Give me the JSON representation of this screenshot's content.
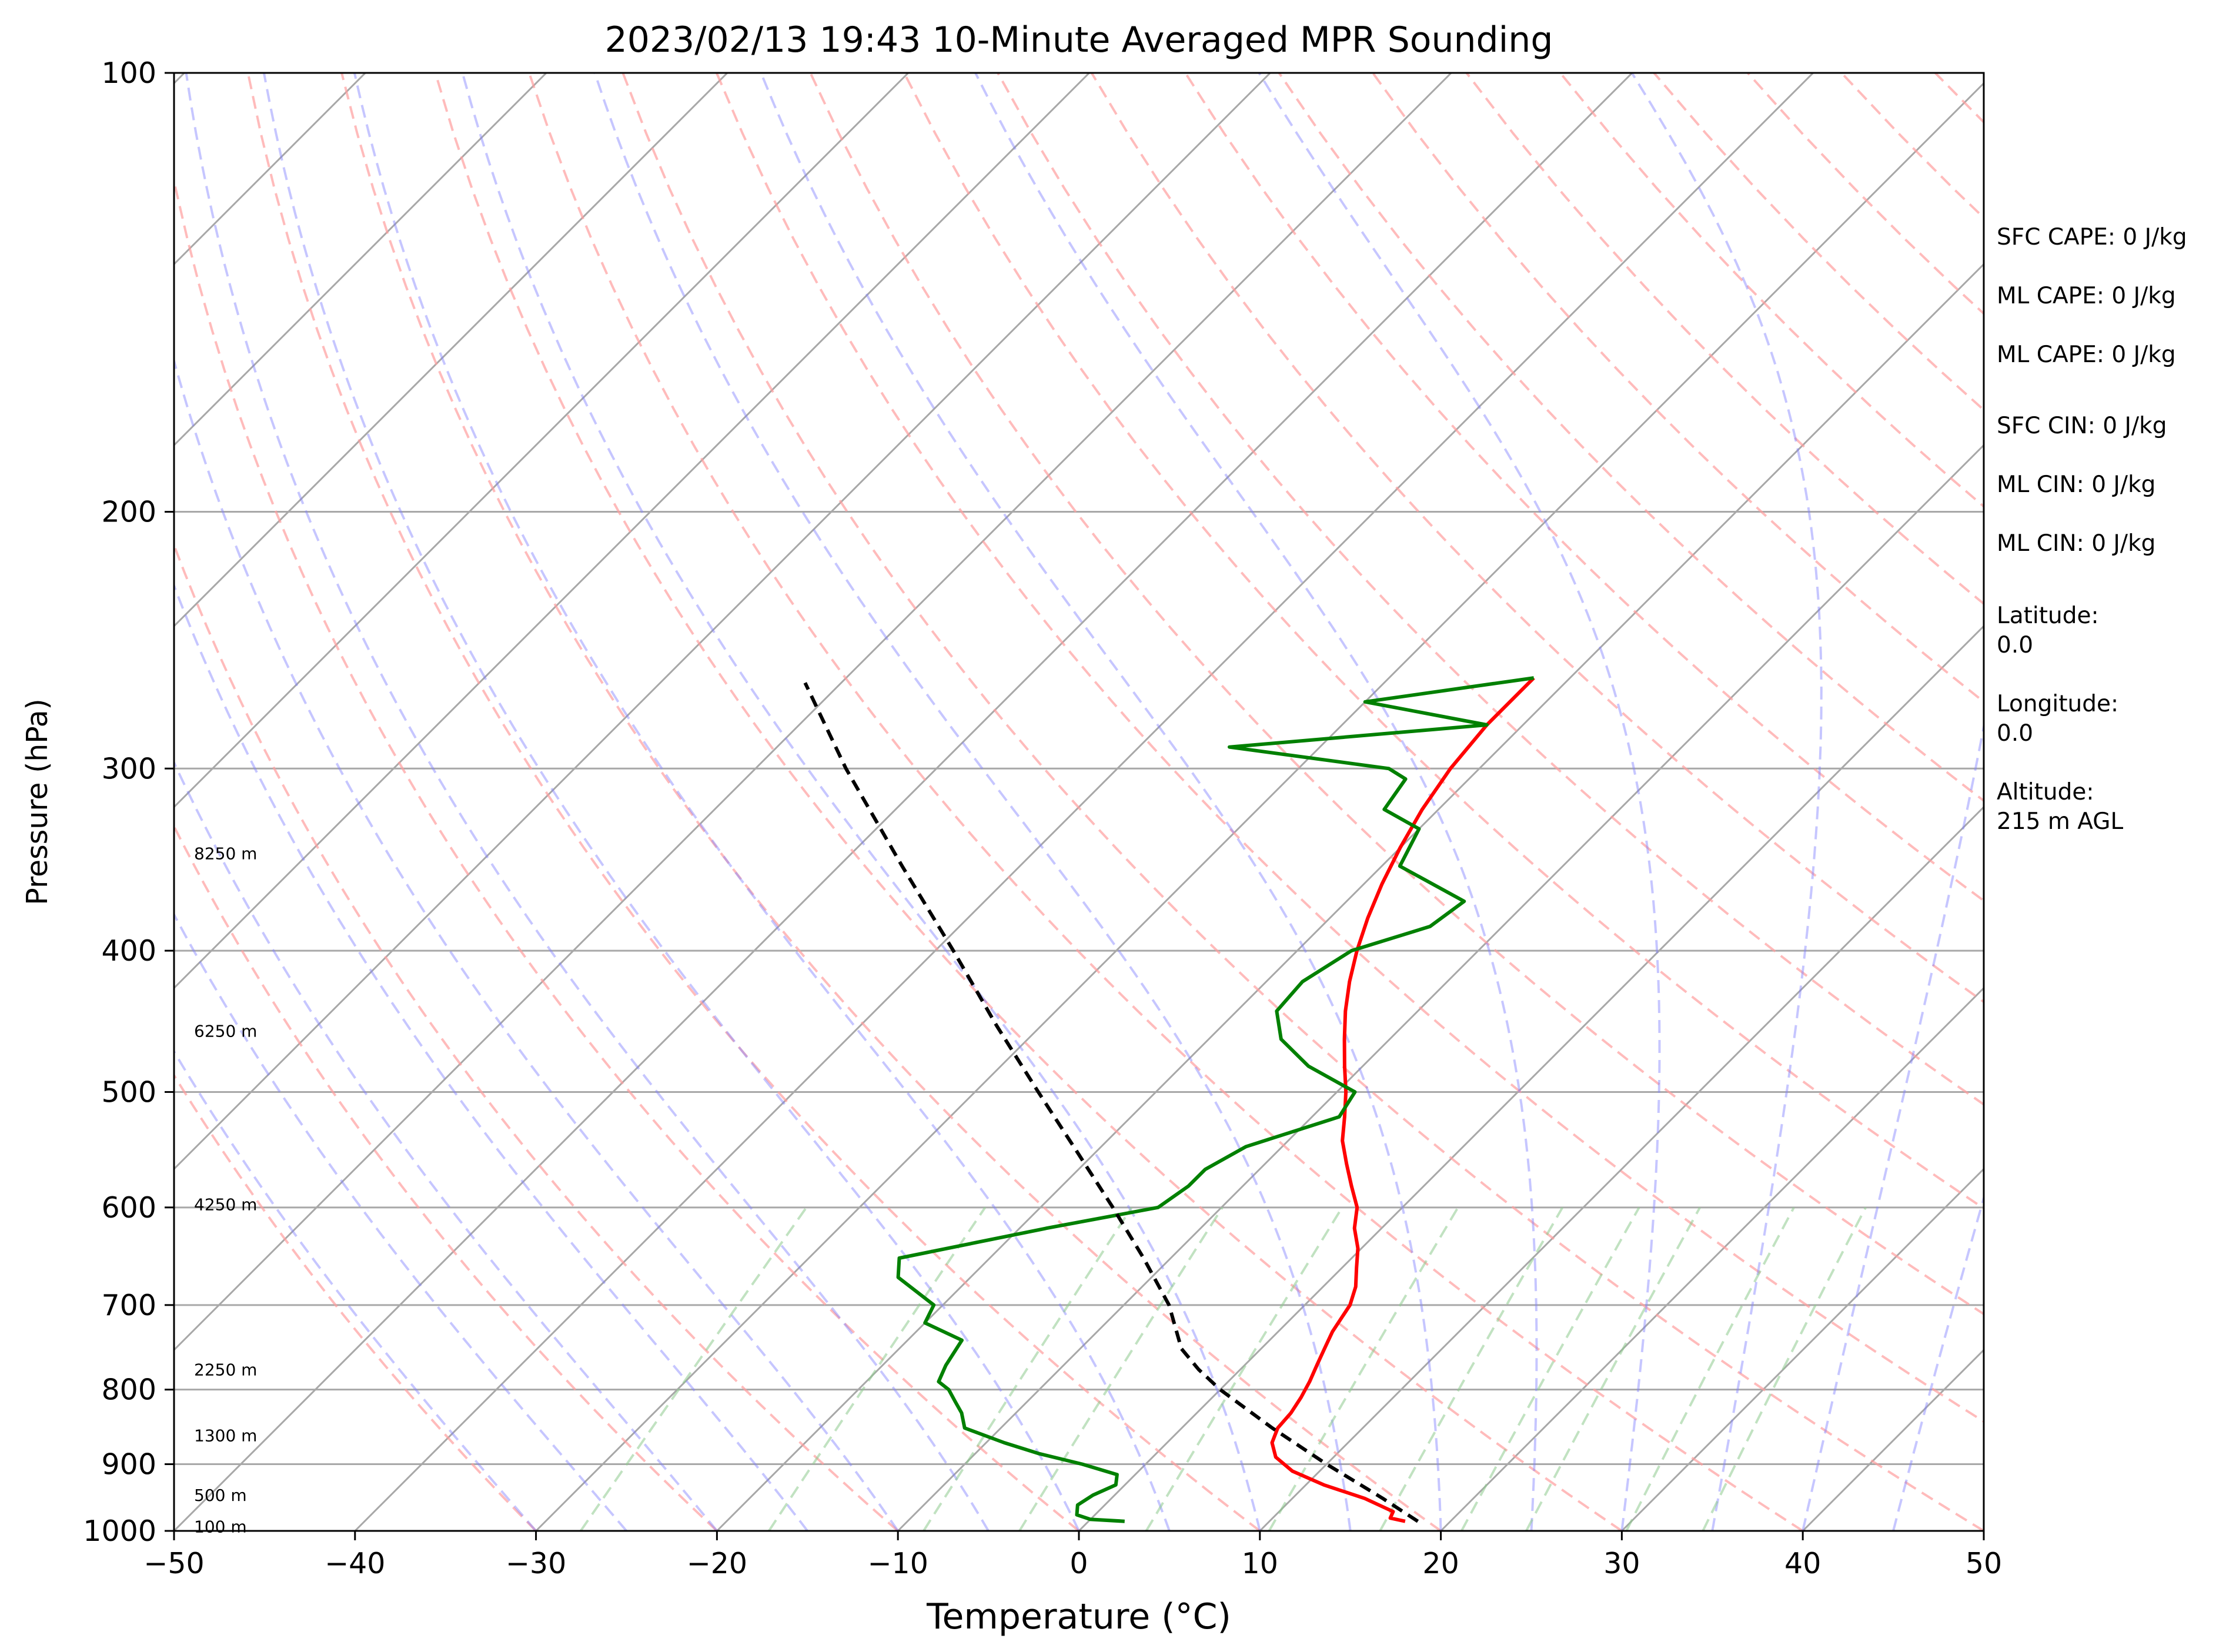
{
  "chart_data": {
    "type": "line",
    "diagram": "skew-t log-p",
    "title": "2023/02/13 19:43 10-Minute Averaged MPR Sounding",
    "xlabel": "Temperature (°C)",
    "ylabel": "Pressure (hPa)",
    "xlim": [
      -50,
      50
    ],
    "ylim": [
      1000,
      100
    ],
    "y_scale": "log",
    "x_ticks": [
      -50,
      -40,
      -30,
      -20,
      -10,
      0,
      10,
      20,
      30,
      40,
      50
    ],
    "x_tick_labels": [
      "−50",
      "−40",
      "−30",
      "−20",
      "−10",
      "0",
      "10",
      "20",
      "30",
      "40",
      "50"
    ],
    "y_ticks": [
      1000,
      900,
      800,
      700,
      600,
      500,
      400,
      300,
      200,
      100
    ],
    "y_tick_labels": [
      "1000",
      "900",
      "800",
      "700",
      "600",
      "500",
      "400",
      "300",
      "200",
      "100"
    ],
    "grid": true,
    "series": [
      {
        "role": "temperature",
        "color": "#ff0000",
        "pressure": [
          985,
          980,
          970,
          950,
          930,
          910,
          890,
          870,
          850,
          830,
          810,
          790,
          770,
          750,
          730,
          700,
          680,
          660,
          640,
          620,
          600,
          580,
          560,
          540,
          520,
          500,
          480,
          460,
          440,
          420,
          400,
          380,
          360,
          340,
          320,
          300,
          280,
          260
        ],
        "values": [
          17.5,
          16.5,
          16.3,
          14.0,
          11.0,
          8.5,
          6.8,
          5.8,
          5.3,
          5.2,
          4.9,
          4.5,
          4.0,
          3.5,
          3.0,
          2.5,
          1.8,
          0.8,
          -0.2,
          -1.5,
          -2.5,
          -4.0,
          -5.5,
          -7.0,
          -8.2,
          -9.5,
          -11.0,
          -12.5,
          -14.0,
          -15.4,
          -16.7,
          -17.9,
          -19.0,
          -20.0,
          -20.9,
          -21.6,
          -22.0,
          -22.0
        ]
      },
      {
        "role": "dewpoint",
        "color": "#008000",
        "pressure": [
          985,
          982,
          975,
          960,
          945,
          930,
          915,
          900,
          885,
          870,
          850,
          830,
          815,
          800,
          790,
          770,
          740,
          720,
          700,
          670,
          650,
          620,
          600,
          580,
          565,
          545,
          520,
          500,
          480,
          460,
          440,
          420,
          400,
          385,
          370,
          350,
          330,
          320,
          305,
          300,
          290,
          280,
          270,
          260
        ],
        "values": [
          2.0,
          0.0,
          -1.0,
          -1.5,
          -1.2,
          -0.5,
          -1.0,
          -3.5,
          -6.5,
          -9.0,
          -12.0,
          -13.0,
          -14.0,
          -15.0,
          -16.0,
          -16.5,
          -17.0,
          -20.0,
          -20.5,
          -24.0,
          -25.0,
          -18.5,
          -13.5,
          -13.0,
          -13.0,
          -12.0,
          -8.5,
          -9.0,
          -13.0,
          -16.0,
          -17.8,
          -18.0,
          -17.0,
          -14.0,
          -13.5,
          -19.0,
          -20.0,
          -23.0,
          -23.5,
          -25.0,
          -35.0,
          -22.0,
          -30.0,
          -22.0
        ]
      },
      {
        "role": "parcel",
        "color": "#000000",
        "pressure": [
          985,
          950,
          900,
          850,
          800,
          775,
          750,
          700,
          650,
          600,
          550,
          500,
          450,
          400,
          350,
          300,
          262
        ],
        "values": [
          18.2,
          15.0,
          10.0,
          5.0,
          0.0,
          -2.3,
          -4.4,
          -7.5,
          -11.5,
          -16.0,
          -21.0,
          -26.5,
          -32.5,
          -39.0,
          -46.5,
          -55.0,
          -62.0
        ]
      }
    ],
    "height_labels": [
      {
        "text": "100 m",
        "pressure": 993
      },
      {
        "text": "500 m",
        "pressure": 945
      },
      {
        "text": "1300 m",
        "pressure": 860
      },
      {
        "text": "2250 m",
        "pressure": 775
      },
      {
        "text": "4250 m",
        "pressure": 597
      },
      {
        "text": "6250 m",
        "pressure": 454
      },
      {
        "text": "8250 m",
        "pressure": 343
      }
    ],
    "background_lines": {
      "isotherm_color": "#a8a8a8",
      "dry_adiabat_color": "#ff9e9e",
      "moist_adiabat_color": "#8080ff",
      "mixing_ratio_color": "#8ecb8e"
    }
  },
  "info_panel": {
    "lines": [
      "SFC CAPE: 0 J/kg",
      "ML CAPE: 0 J/kg",
      "ML CAPE: 0 J/kg",
      "SFC CIN: 0 J/kg",
      "ML CIN: 0 J/kg",
      "ML CIN: 0 J/kg",
      "Latitude:",
      "0.0",
      "Longitude:",
      "0.0",
      "Altitude:",
      "215 m AGL"
    ]
  }
}
